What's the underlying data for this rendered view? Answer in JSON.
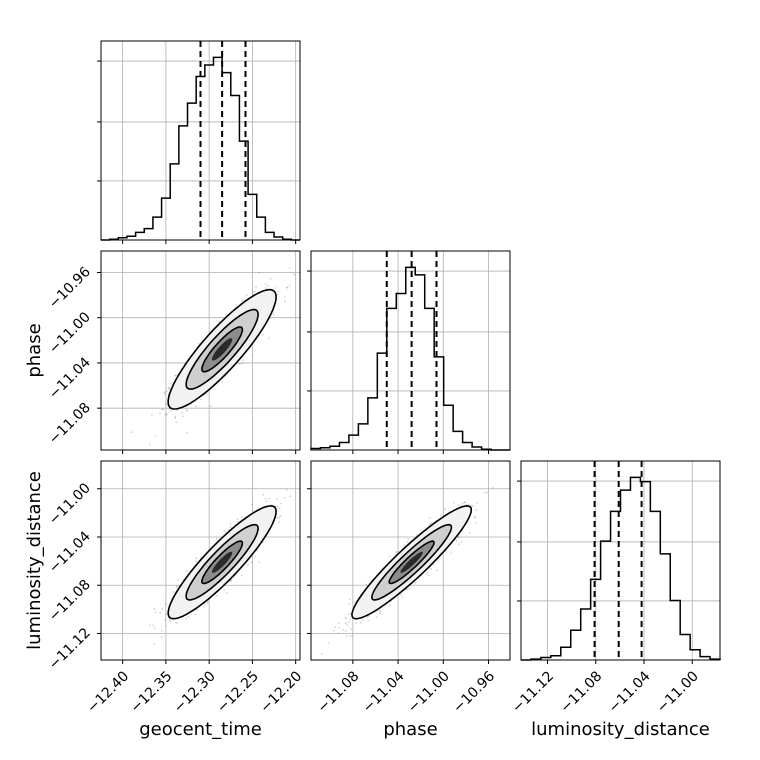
{
  "chart_data": {
    "type": "corner",
    "parameters": [
      "geocent_time",
      "phase",
      "luminosity_distance"
    ],
    "axis_labels": {
      "bottom": [
        "geocent_time",
        "phase",
        "luminosity_distance"
      ],
      "left": [
        "phase",
        "luminosity_distance"
      ]
    },
    "ranges": {
      "geocent_time": [
        -12.425,
        -12.195
      ],
      "phase": [
        -11.117,
        -10.941
      ],
      "luminosity_distance": [
        -11.142,
        -10.977
      ]
    },
    "ticks": {
      "geocent_time": [
        -12.4,
        -12.35,
        -12.3,
        -12.25,
        -12.2
      ],
      "phase": [
        -11.08,
        -11.04,
        -11.0,
        -10.96
      ],
      "luminosity_distance": [
        -11.12,
        -11.08,
        -11.04,
        -11.0
      ]
    },
    "tick_labels": {
      "geocent_time": [
        "−12.40",
        "−12.35",
        "−12.30",
        "−12.25",
        "−12.20"
      ],
      "phase": [
        "−11.08",
        "−11.04",
        "−11.00",
        "−10.96"
      ],
      "luminosity_distance": [
        "−11.12",
        "−11.08",
        "−11.04",
        "−11.00"
      ]
    },
    "histograms": {
      "geocent_time": {
        "counts": [
          0,
          1,
          3,
          5,
          10,
          15,
          30,
          55,
          100,
          150,
          180,
          215,
          230,
          240,
          220,
          190,
          130,
          60,
          30,
          10,
          4,
          1,
          0
        ],
        "quantiles": [
          -12.31,
          -12.285,
          -12.258
        ]
      },
      "phase": {
        "counts": [
          2,
          3,
          5,
          10,
          20,
          35,
          70,
          130,
          190,
          210,
          245,
          235,
          190,
          125,
          60,
          25,
          10,
          4,
          1,
          0,
          0
        ],
        "quantiles": [
          -11.05,
          -11.028,
          -11.006
        ]
      },
      "luminosity_distance": {
        "counts": [
          0,
          1,
          3,
          5,
          15,
          35,
          60,
          95,
          140,
          175,
          200,
          215,
          210,
          175,
          125,
          70,
          30,
          12,
          4,
          1
        ],
        "quantiles": [
          -11.081,
          -11.061,
          -11.042
        ]
      }
    },
    "correlations": {
      "phase_vs_geocent_time": 0.88,
      "luminosity_distance_vs_geocent_time": 0.9,
      "luminosity_distance_vs_phase": 0.93
    },
    "grid": true,
    "colors": {
      "line": "#000000",
      "grid": "#b0b0b0",
      "points": "#808080"
    }
  }
}
